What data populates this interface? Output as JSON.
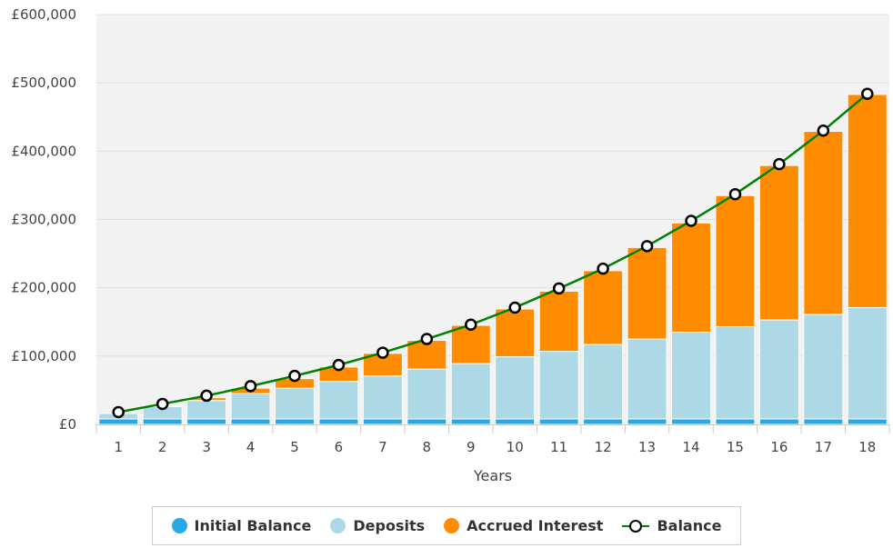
{
  "chart_data": {
    "type": "bar",
    "stacked": true,
    "categories": [
      "1",
      "2",
      "3",
      "4",
      "5",
      "6",
      "7",
      "8",
      "9",
      "10",
      "11",
      "12",
      "13",
      "14",
      "15",
      "16",
      "17",
      "18"
    ],
    "xlabel": "Years",
    "ylabel": "",
    "ylim": [
      0,
      600000
    ],
    "y_ticks": [
      "£0",
      "£100,000",
      "£200,000",
      "£300,000",
      "£400,000",
      "£500,000",
      "£600,000"
    ],
    "y_tick_values": [
      0,
      100000,
      200000,
      300000,
      400000,
      500000,
      600000
    ],
    "grid": true,
    "legend_position": "bottom",
    "series": [
      {
        "name": "Initial Balance",
        "kind": "bar",
        "color": "#29a8e8",
        "values": [
          8000,
          8000,
          8000,
          8000,
          8000,
          8000,
          8000,
          8000,
          8000,
          8000,
          8000,
          8000,
          8000,
          8000,
          8000,
          8000,
          8000,
          8000
        ]
      },
      {
        "name": "Deposits",
        "kind": "bar",
        "color": "#add8e6",
        "values": [
          8000,
          18000,
          27000,
          37000,
          45000,
          55000,
          63000,
          73000,
          81000,
          91000,
          99000,
          109000,
          117000,
          127000,
          135000,
          145000,
          153000,
          163000
        ]
      },
      {
        "name": "Accrued Interest",
        "kind": "bar",
        "color": "#ff8c00",
        "values": [
          0,
          1000,
          4000,
          8000,
          14000,
          21000,
          33000,
          42000,
          56000,
          70000,
          88000,
          108000,
          134000,
          160000,
          192000,
          226000,
          268000,
          312000
        ]
      },
      {
        "name": "Balance",
        "kind": "line",
        "color": "#008000",
        "values": [
          18000,
          30000,
          42000,
          56000,
          71000,
          87000,
          105000,
          125000,
          146000,
          171000,
          199000,
          228000,
          261000,
          298000,
          337000,
          381000,
          430000,
          484000
        ]
      }
    ]
  },
  "colors": {
    "plot_background": "#f2f2f2",
    "gridline": "#e0e0e0",
    "axis": "#cccccc",
    "marker_fill": "#ffffff",
    "marker_stroke": "#000000"
  },
  "legend": {
    "items": [
      {
        "label": "Initial Balance",
        "color": "#29a8e8",
        "symbol": "dot"
      },
      {
        "label": "Deposits",
        "color": "#add8e6",
        "symbol": "dot"
      },
      {
        "label": "Accrued Interest",
        "color": "#ff8c00",
        "symbol": "dot"
      },
      {
        "label": "Balance",
        "color": "#008000",
        "symbol": "line-marker"
      }
    ]
  }
}
